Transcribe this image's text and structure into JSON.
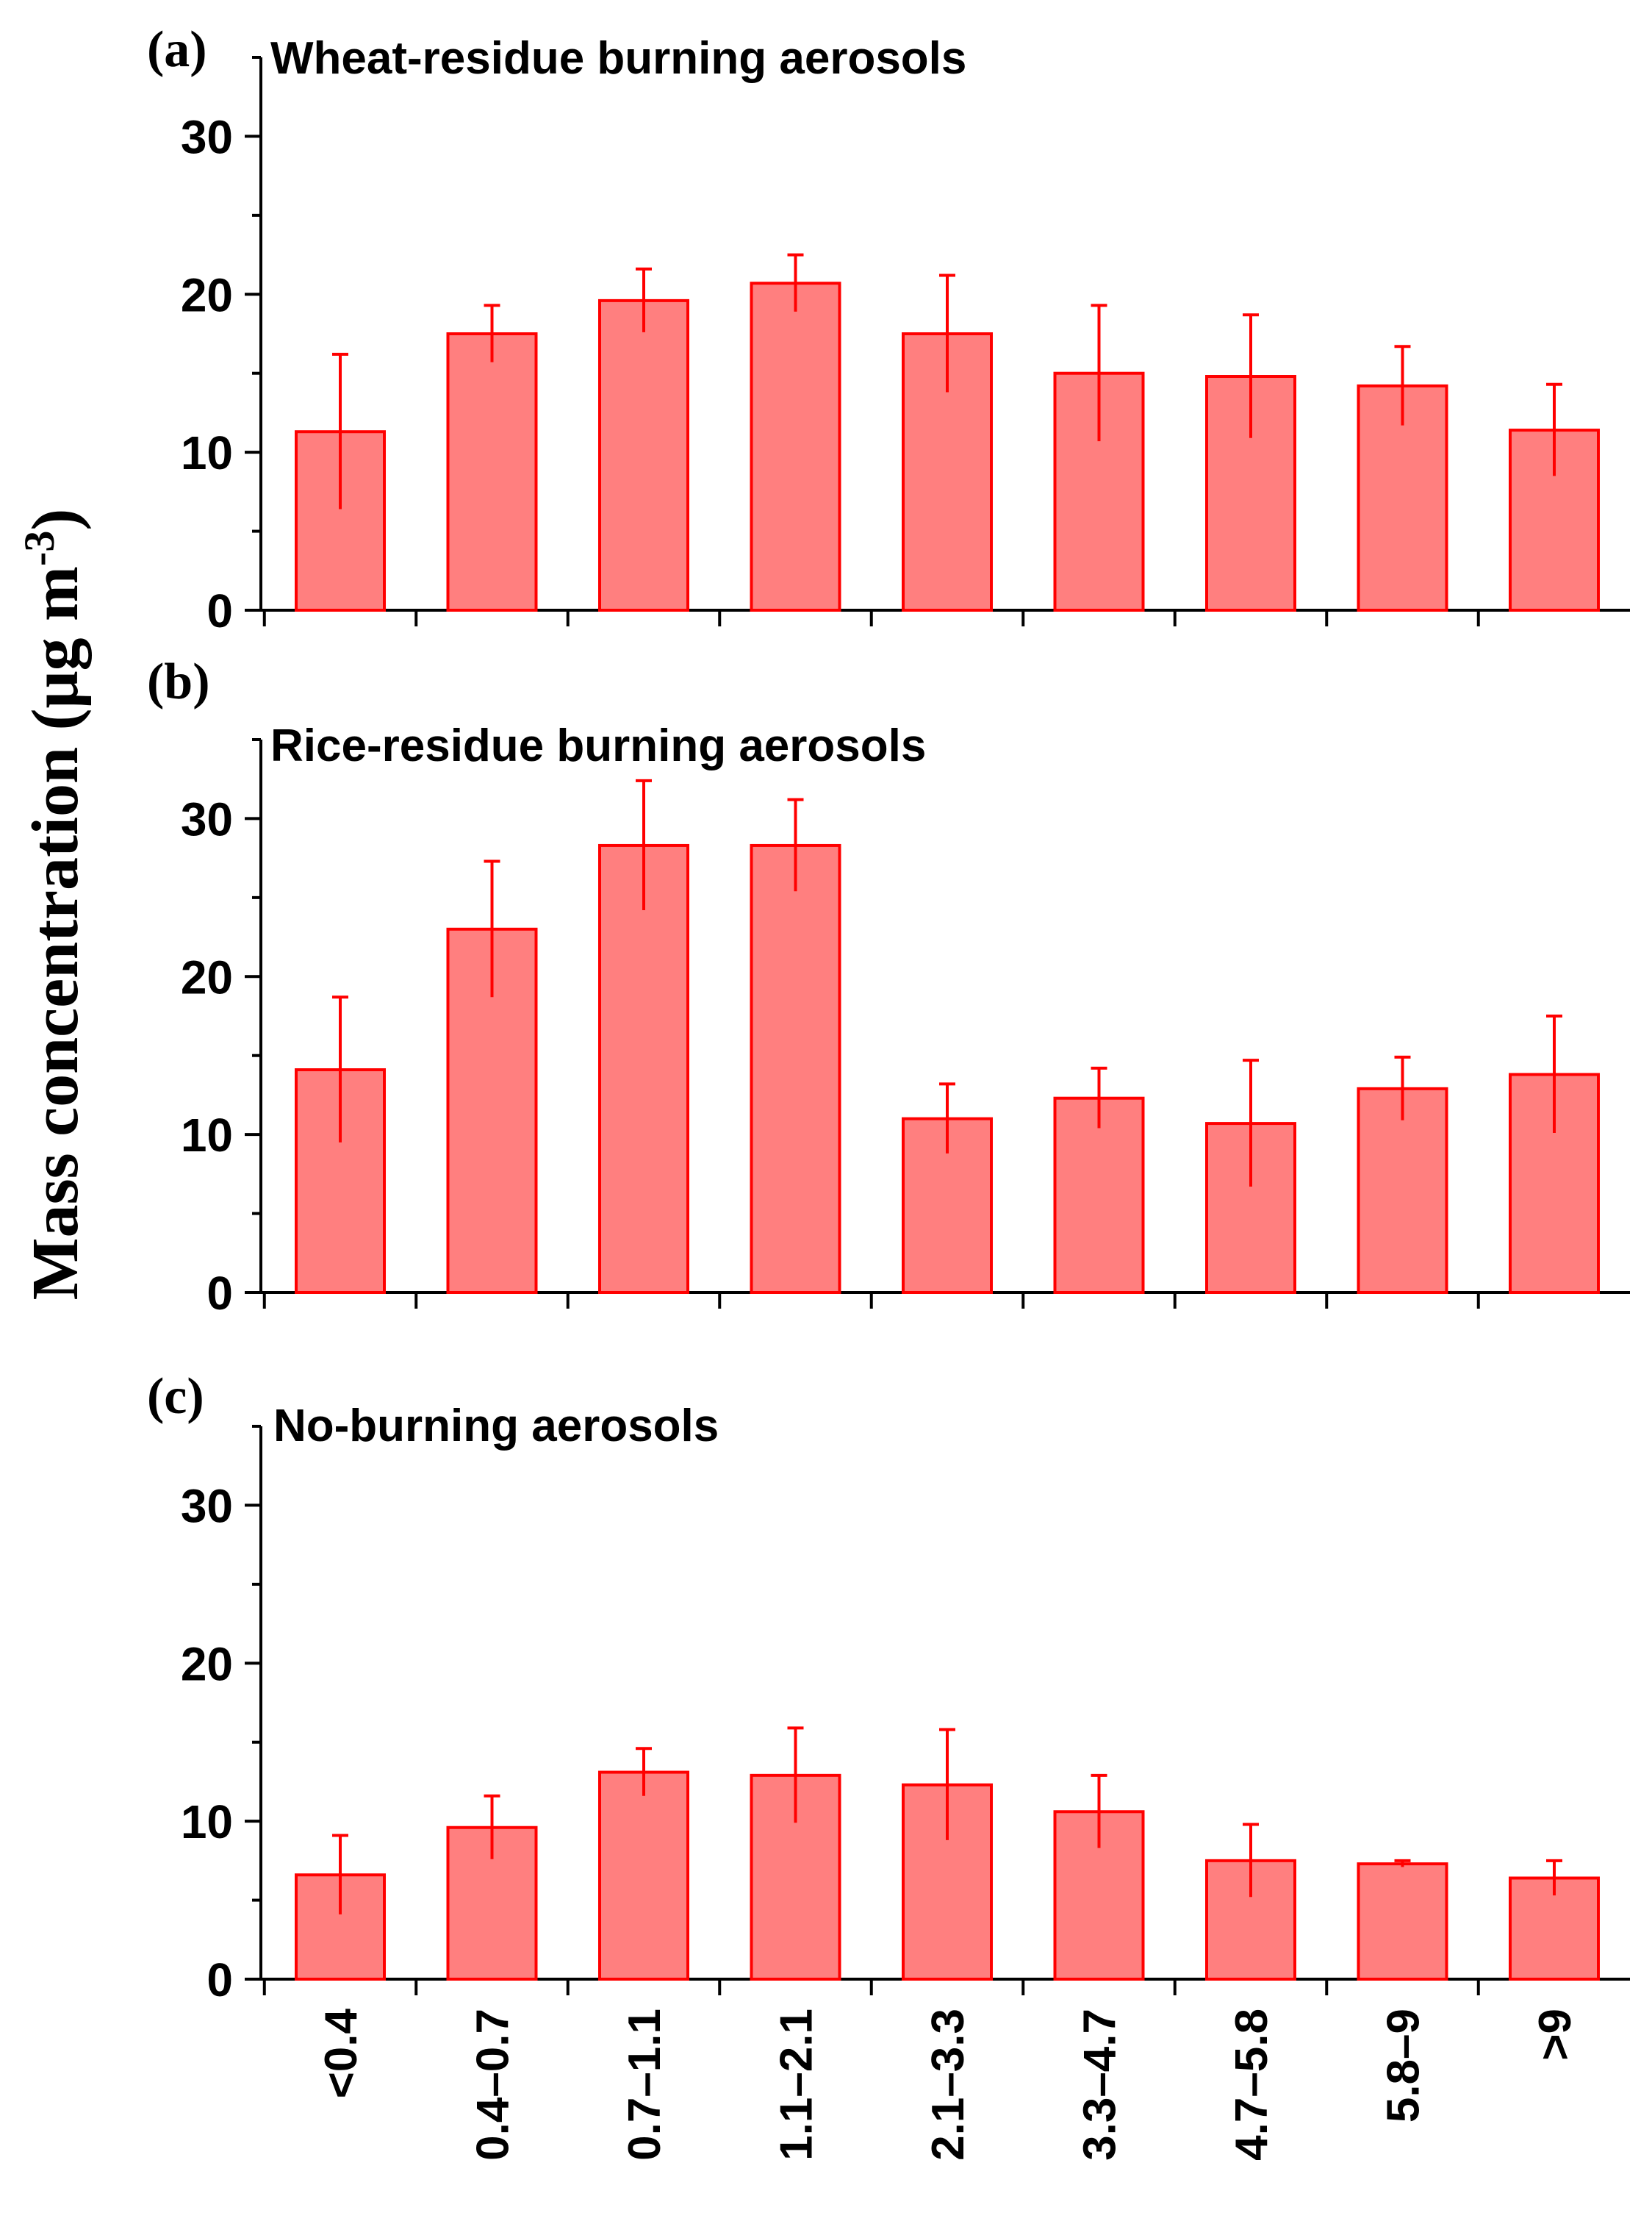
{
  "ylabel_main": "Mass concentration (μg m",
  "ylabel_sup": "-3",
  "ylabel_close": ")",
  "colors": {
    "bar_fill": "#ff7f7f",
    "bar_edge": "#ff0000",
    "axis": "#000000"
  },
  "chart_data": [
    {
      "type": "bar",
      "label": "(a)",
      "title": "Wheat-residue burning aerosols",
      "categories": [
        "<0.4",
        "0.4–0.7",
        "0.7–1.1",
        "1.1–2.1",
        "2.1–3.3",
        "3.3–4.7",
        "4.7–5.8",
        "5.8–9",
        ">9"
      ],
      "values": [
        11.3,
        17.5,
        19.6,
        20.7,
        17.5,
        15.0,
        14.8,
        14.2,
        11.4
      ],
      "error": [
        4.9,
        1.8,
        2.0,
        1.8,
        3.7,
        4.3,
        3.9,
        2.5,
        2.9
      ],
      "ylim": [
        0,
        35
      ],
      "yticks": [
        0,
        10,
        20,
        30
      ],
      "show_xticklabels": false
    },
    {
      "type": "bar",
      "label": "(b)",
      "title": "Rice-residue burning aerosols",
      "categories": [
        "<0.4",
        "0.4–0.7",
        "0.7–1.1",
        "1.1–2.1",
        "2.1–3.3",
        "3.3–4.7",
        "4.7–5.8",
        "5.8–9",
        ">9"
      ],
      "values": [
        14.1,
        23.0,
        28.3,
        28.3,
        11.0,
        12.3,
        10.7,
        12.9,
        13.8
      ],
      "error": [
        4.6,
        4.3,
        4.1,
        2.9,
        2.2,
        1.9,
        4.0,
        2.0,
        3.7
      ],
      "ylim": [
        0,
        35
      ],
      "yticks": [
        0,
        10,
        20,
        30
      ],
      "show_xticklabels": false
    },
    {
      "type": "bar",
      "label": "(c)",
      "title": "No-burning aerosols",
      "categories": [
        "<0.4",
        "0.4–0.7",
        "0.7–1.1",
        "1.1–2.1",
        "2.1–3.3",
        "3.3–4.7",
        "4.7–5.8",
        "5.8–9",
        ">9"
      ],
      "values": [
        6.6,
        9.6,
        13.1,
        12.9,
        12.3,
        10.6,
        7.5,
        7.3,
        6.4
      ],
      "error": [
        2.5,
        2.0,
        1.5,
        3.0,
        3.5,
        2.3,
        2.3,
        0.2,
        1.1
      ],
      "ylim": [
        0,
        35
      ],
      "yticks": [
        0,
        10,
        20,
        30
      ],
      "show_xticklabels": true
    }
  ]
}
